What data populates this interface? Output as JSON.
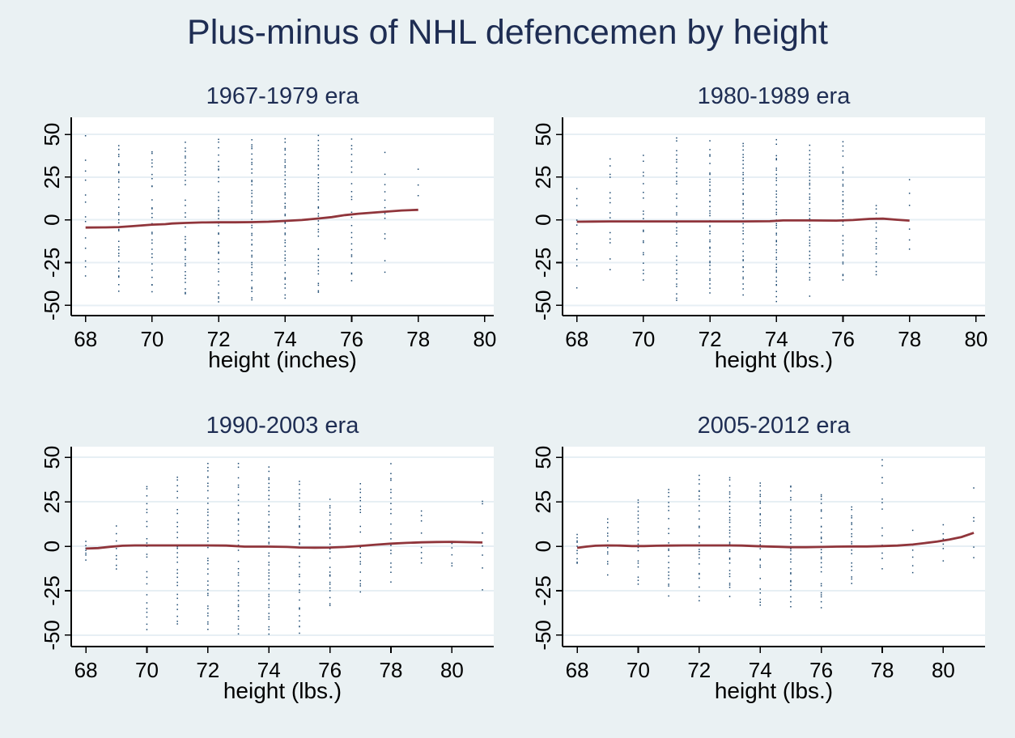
{
  "title": "Plus-minus of NHL defencemen by height",
  "colors": {
    "background": "#eaf1f3",
    "plot_background": "#ffffff",
    "gridline": "#e7eff4",
    "axis": "#000000",
    "scatter_dots": "#1a476f",
    "lowess_line": "#90353b",
    "titles": "#1e2d53"
  },
  "chart_data": [
    {
      "type": "scatter",
      "title": "1967-1979 era",
      "xlabel": "height (inches)",
      "x_ticks": [
        68,
        70,
        72,
        74,
        76,
        78,
        80
      ],
      "y_ticks": [
        50,
        25,
        0,
        -25,
        -50
      ],
      "xlim": [
        67.57,
        80.27
      ],
      "ylim": [
        -56,
        60
      ],
      "grid": "horizontal",
      "legend": "none",
      "lowess_line": [
        [
          68,
          -4.5
        ],
        [
          68.6,
          -4.4
        ],
        [
          69,
          -4.2
        ],
        [
          69.4,
          -3.7
        ],
        [
          70,
          -2.8
        ],
        [
          70.4,
          -2.5
        ],
        [
          70.6,
          -2.1
        ],
        [
          71,
          -1.8
        ],
        [
          71.5,
          -1.5
        ],
        [
          72,
          -1.4
        ],
        [
          72.5,
          -1.4
        ],
        [
          73,
          -1.3
        ],
        [
          73.5,
          -1.1
        ],
        [
          74,
          -0.6
        ],
        [
          74.5,
          -0.1
        ],
        [
          75,
          0.8
        ],
        [
          75.4,
          1.6
        ],
        [
          75.8,
          2.8
        ],
        [
          76.2,
          3.6
        ],
        [
          76.6,
          4.2
        ],
        [
          77,
          4.8
        ],
        [
          77.5,
          5.5
        ],
        [
          78,
          5.9
        ]
      ],
      "scatter_columns": [
        {
          "x": 68,
          "ymin": -37,
          "ymax": 50,
          "n": 14
        },
        {
          "x": 69,
          "ymin": -43,
          "ymax": 45,
          "n": 36
        },
        {
          "x": 70,
          "ymin": -43,
          "ymax": 42,
          "n": 34
        },
        {
          "x": 71,
          "ymin": -45,
          "ymax": 46,
          "n": 40
        },
        {
          "x": 72,
          "ymin": -49,
          "ymax": 48,
          "n": 52
        },
        {
          "x": 73,
          "ymin": -48,
          "ymax": 48,
          "n": 46
        },
        {
          "x": 74,
          "ymin": -47,
          "ymax": 48,
          "n": 44
        },
        {
          "x": 75,
          "ymin": -44,
          "ymax": 50,
          "n": 42
        },
        {
          "x": 76,
          "ymin": -38,
          "ymax": 50,
          "n": 26
        },
        {
          "x": 77,
          "ymin": -33,
          "ymax": 45,
          "n": 16
        },
        {
          "x": 78,
          "ymin": 13,
          "ymax": 33,
          "n": 3
        }
      ]
    },
    {
      "type": "scatter",
      "title": "1980-1989 era",
      "xlabel": "height (lbs.)",
      "x_ticks": [
        68,
        70,
        72,
        74,
        76,
        78,
        80
      ],
      "y_ticks": [
        50,
        25,
        0,
        -25,
        -50
      ],
      "xlim": [
        67.57,
        80.27
      ],
      "ylim": [
        -56,
        60
      ],
      "grid": "horizontal",
      "legend": "none",
      "lowess_line": [
        [
          68,
          -1.1
        ],
        [
          68.5,
          -1.0
        ],
        [
          69,
          -0.9
        ],
        [
          70,
          -0.9
        ],
        [
          71,
          -0.9
        ],
        [
          72,
          -0.9
        ],
        [
          73,
          -0.9
        ],
        [
          73.8,
          -0.8
        ],
        [
          74.2,
          -0.3
        ],
        [
          75,
          -0.3
        ],
        [
          75.8,
          -0.4
        ],
        [
          76.3,
          -0.1
        ],
        [
          76.8,
          0.6
        ],
        [
          77.2,
          0.7
        ],
        [
          77.6,
          0.1
        ],
        [
          78,
          -0.4
        ]
      ],
      "scatter_columns": [
        {
          "x": 68,
          "ymin": -40,
          "ymax": 27,
          "n": 16
        },
        {
          "x": 69,
          "ymin": -31,
          "ymax": 44,
          "n": 16
        },
        {
          "x": 70,
          "ymin": -38,
          "ymax": 40,
          "n": 22
        },
        {
          "x": 71,
          "ymin": -49,
          "ymax": 50,
          "n": 38
        },
        {
          "x": 72,
          "ymin": -43,
          "ymax": 48,
          "n": 44
        },
        {
          "x": 73,
          "ymin": -44,
          "ymax": 46,
          "n": 44
        },
        {
          "x": 74,
          "ymin": -48,
          "ymax": 47,
          "n": 48
        },
        {
          "x": 75,
          "ymin": -45,
          "ymax": 45,
          "n": 44
        },
        {
          "x": 76,
          "ymin": -37,
          "ymax": 46,
          "n": 36
        },
        {
          "x": 77,
          "ymin": -33,
          "ymax": 10,
          "n": 16
        },
        {
          "x": 78,
          "ymin": -23,
          "ymax": 28,
          "n": 7
        }
      ]
    },
    {
      "type": "scatter",
      "title": "1990-2003 era",
      "xlabel": "height (lbs.)",
      "x_ticks": [
        68,
        70,
        72,
        74,
        76,
        78,
        80
      ],
      "y_ticks": [
        50,
        25,
        0,
        -25,
        -50
      ],
      "xlim": [
        67.52,
        81.37
      ],
      "ylim": [
        -56.4,
        56
      ],
      "grid": "horizontal",
      "legend": "none",
      "lowess_line": [
        [
          68,
          -1.3
        ],
        [
          68.4,
          -1.0
        ],
        [
          68.8,
          -0.3
        ],
        [
          69.2,
          0.3
        ],
        [
          69.6,
          0.5
        ],
        [
          70,
          0.5
        ],
        [
          71,
          0.5
        ],
        [
          72,
          0.5
        ],
        [
          72.6,
          0.4
        ],
        [
          72.9,
          0.1
        ],
        [
          73.2,
          -0.2
        ],
        [
          74,
          -0.2
        ],
        [
          74.6,
          -0.4
        ],
        [
          75,
          -0.7
        ],
        [
          75.5,
          -0.8
        ],
        [
          76,
          -0.7
        ],
        [
          76.5,
          -0.4
        ],
        [
          77,
          0.2
        ],
        [
          77.5,
          0.9
        ],
        [
          78,
          1.5
        ],
        [
          78.5,
          1.9
        ],
        [
          79,
          2.2
        ],
        [
          79.5,
          2.4
        ],
        [
          80,
          2.5
        ],
        [
          80.5,
          2.3
        ],
        [
          81,
          2.1
        ]
      ],
      "scatter_columns": [
        {
          "x": 68,
          "ymin": -8,
          "ymax": 3,
          "n": 7
        },
        {
          "x": 69,
          "ymin": -17,
          "ymax": 13,
          "n": 11
        },
        {
          "x": 70,
          "ymin": -48,
          "ymax": 36,
          "n": 26
        },
        {
          "x": 71,
          "ymin": -46,
          "ymax": 40,
          "n": 32
        },
        {
          "x": 72,
          "ymin": -48,
          "ymax": 48,
          "n": 42
        },
        {
          "x": 73,
          "ymin": -50,
          "ymax": 48,
          "n": 42
        },
        {
          "x": 74,
          "ymin": -50,
          "ymax": 45,
          "n": 42
        },
        {
          "x": 75,
          "ymin": -50,
          "ymax": 38,
          "n": 36
        },
        {
          "x": 76,
          "ymin": -35,
          "ymax": 30,
          "n": 32
        },
        {
          "x": 77,
          "ymin": -27,
          "ymax": 37,
          "n": 26
        },
        {
          "x": 78,
          "ymin": -22,
          "ymax": 47,
          "n": 22
        },
        {
          "x": 79,
          "ymin": -11,
          "ymax": 21,
          "n": 10
        },
        {
          "x": 80,
          "ymin": -13,
          "ymax": 5,
          "n": 7
        },
        {
          "x": 81,
          "ymin": -27,
          "ymax": 33,
          "n": 7
        }
      ]
    },
    {
      "type": "scatter",
      "title": "2005-2012 era",
      "xlabel": "height (lbs.)",
      "x_ticks": [
        68,
        70,
        72,
        74,
        76,
        78,
        80
      ],
      "y_ticks": [
        50,
        25,
        0,
        -25,
        -50
      ],
      "xlim": [
        67.52,
        81.37
      ],
      "ylim": [
        -56.4,
        56
      ],
      "grid": "horizontal",
      "legend": "none",
      "lowess_line": [
        [
          68,
          -0.9
        ],
        [
          68.3,
          -0.2
        ],
        [
          68.6,
          0.3
        ],
        [
          69,
          0.5
        ],
        [
          69.4,
          0.4
        ],
        [
          69.8,
          0.1
        ],
        [
          70.2,
          0.1
        ],
        [
          70.6,
          0.3
        ],
        [
          71,
          0.4
        ],
        [
          71.5,
          0.5
        ],
        [
          72,
          0.5
        ],
        [
          72.5,
          0.5
        ],
        [
          73,
          0.5
        ],
        [
          73.4,
          0.4
        ],
        [
          73.8,
          0.1
        ],
        [
          74.2,
          -0.1
        ],
        [
          74.6,
          -0.3
        ],
        [
          75,
          -0.5
        ],
        [
          75.5,
          -0.5
        ],
        [
          76,
          -0.4
        ],
        [
          76.5,
          -0.2
        ],
        [
          77,
          -0.1
        ],
        [
          77.5,
          -0.1
        ],
        [
          78,
          0.1
        ],
        [
          78.5,
          0.4
        ],
        [
          79,
          1.0
        ],
        [
          79.4,
          1.8
        ],
        [
          79.8,
          2.6
        ],
        [
          80.2,
          3.8
        ],
        [
          80.6,
          5.2
        ],
        [
          81,
          7.6
        ]
      ],
      "scatter_columns": [
        {
          "x": 68,
          "ymin": -11,
          "ymax": 8,
          "n": 10
        },
        {
          "x": 69,
          "ymin": -17,
          "ymax": 16,
          "n": 13
        },
        {
          "x": 70,
          "ymin": -22,
          "ymax": 28,
          "n": 22
        },
        {
          "x": 71,
          "ymin": -28,
          "ymax": 33,
          "n": 28
        },
        {
          "x": 72,
          "ymin": -31,
          "ymax": 40,
          "n": 32
        },
        {
          "x": 73,
          "ymin": -29,
          "ymax": 40,
          "n": 34
        },
        {
          "x": 74,
          "ymin": -35,
          "ymax": 37,
          "n": 34
        },
        {
          "x": 75,
          "ymin": -35,
          "ymax": 36,
          "n": 32
        },
        {
          "x": 76,
          "ymin": -35,
          "ymax": 31,
          "n": 30
        },
        {
          "x": 77,
          "ymin": -24,
          "ymax": 23,
          "n": 22
        },
        {
          "x": 78,
          "ymin": -13,
          "ymax": 50,
          "n": 16
        },
        {
          "x": 79,
          "ymin": -16,
          "ymax": 13,
          "n": 10
        },
        {
          "x": 80,
          "ymin": -9,
          "ymax": 13,
          "n": 7
        },
        {
          "x": 81,
          "ymin": -23,
          "ymax": 33,
          "n": 6
        }
      ]
    }
  ]
}
